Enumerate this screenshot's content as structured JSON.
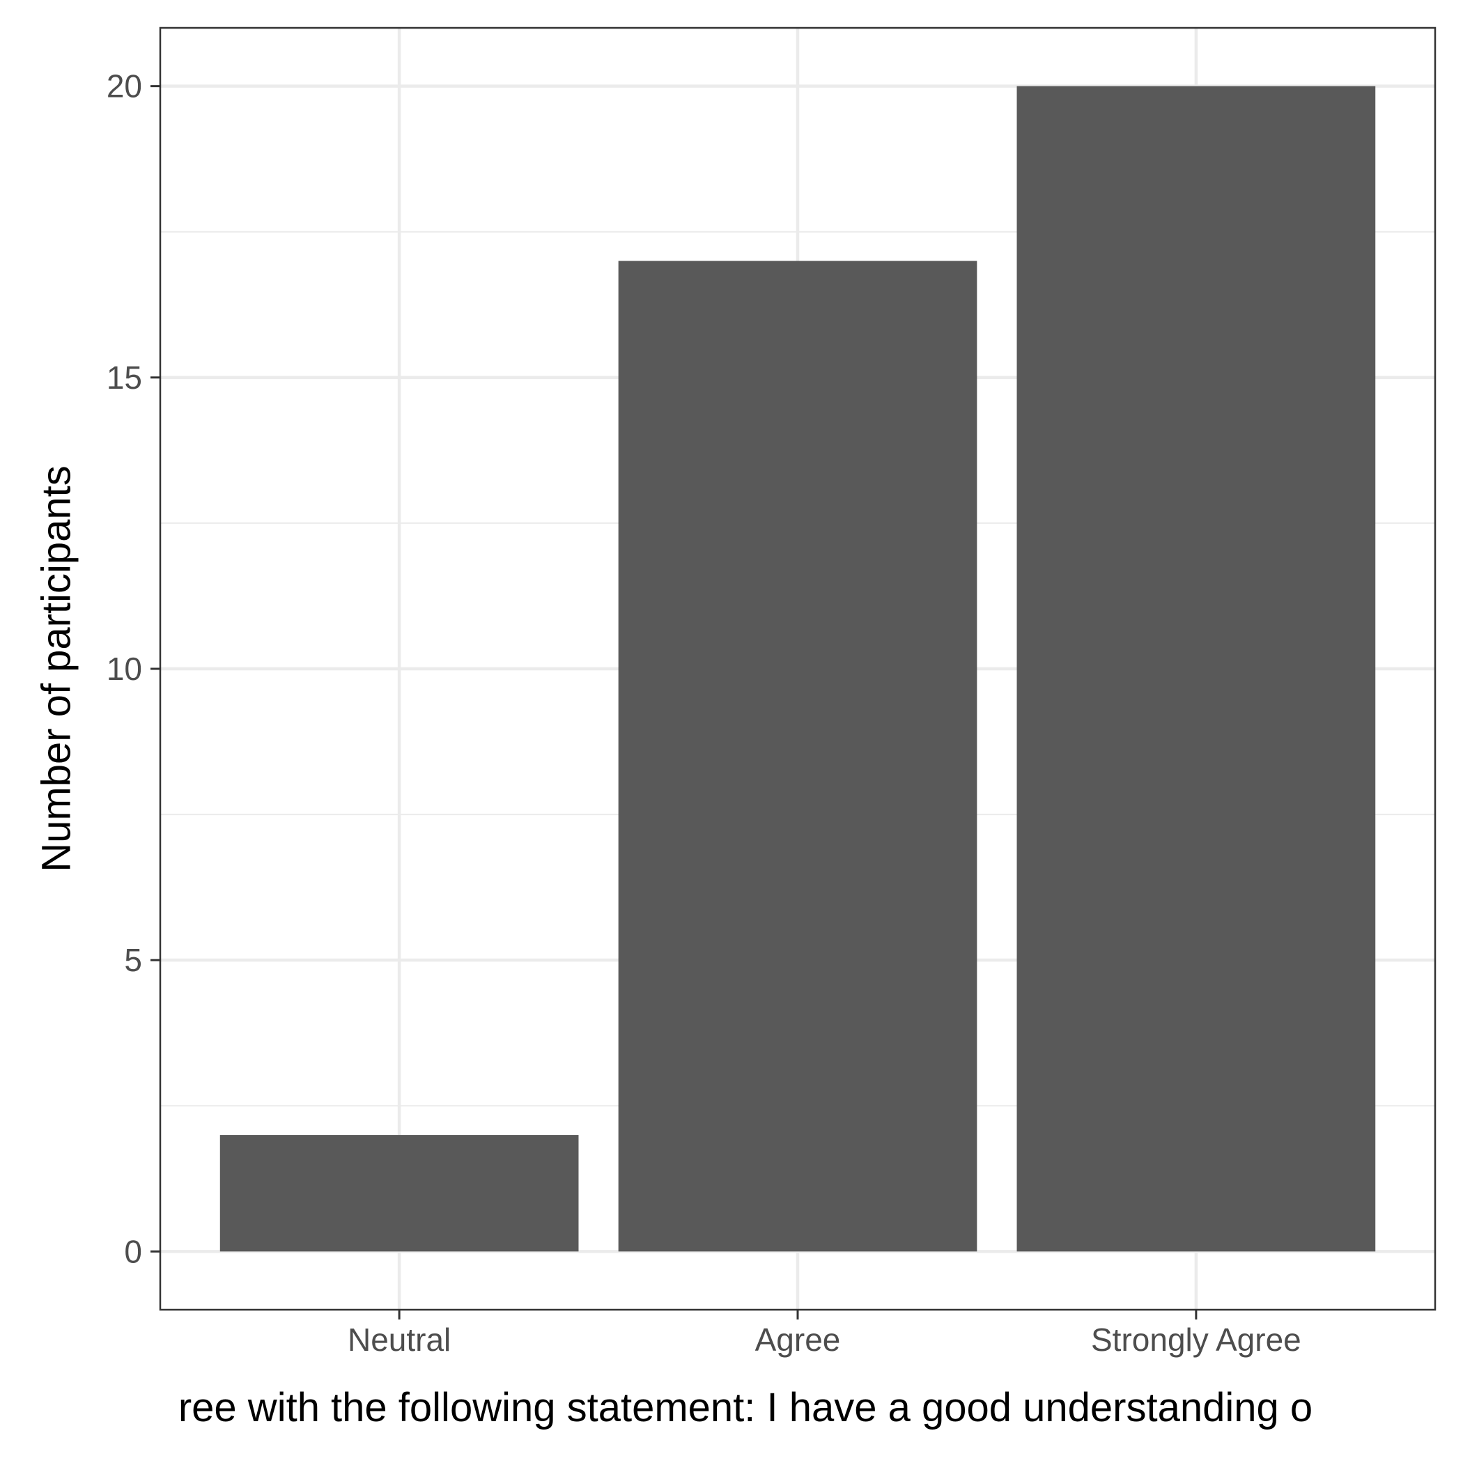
{
  "chart_data": {
    "type": "bar",
    "categories": [
      "Neutral",
      "Agree",
      "Strongly Agree"
    ],
    "values": [
      2,
      17,
      20
    ],
    "title": "",
    "xlabel": "ree with the following statement: I have a good understanding o",
    "ylabel": "Number of participants",
    "ylim": [
      -1,
      21
    ],
    "yticks": [
      0,
      5,
      10,
      15,
      20
    ],
    "grid": true,
    "legend": "none",
    "colors": {
      "bar": "#595959",
      "grid": "#ebebeb",
      "panel_border": "#333333",
      "tick_text": "#4d4d4d",
      "title_text": "#000000"
    }
  }
}
